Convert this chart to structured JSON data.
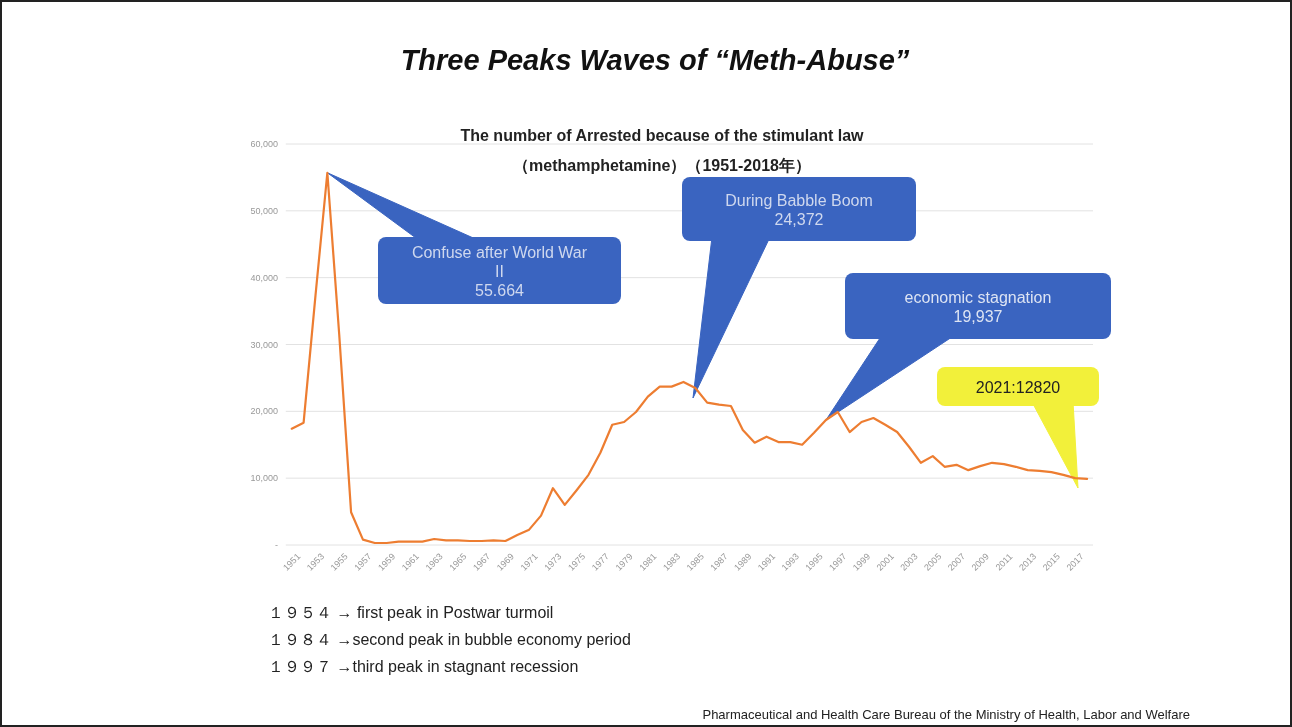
{
  "chart_data": {
    "type": "line",
    "title": "Three Peaks Waves of “Meth-Abuse”",
    "subtitle": "The number of Arrested  because of the stimulant law\n（methamphetamine）（1951-2018年）",
    "x": [
      1951,
      1952,
      1953,
      1954,
      1955,
      1956,
      1957,
      1958,
      1959,
      1960,
      1961,
      1962,
      1963,
      1964,
      1965,
      1966,
      1967,
      1968,
      1969,
      1970,
      1971,
      1972,
      1973,
      1974,
      1975,
      1976,
      1977,
      1978,
      1979,
      1980,
      1981,
      1982,
      1983,
      1984,
      1985,
      1986,
      1987,
      1988,
      1989,
      1990,
      1991,
      1992,
      1993,
      1994,
      1995,
      1996,
      1997,
      1998,
      1999,
      2000,
      2001,
      2002,
      2003,
      2004,
      2005,
      2006,
      2007,
      2008,
      2009,
      2010,
      2011,
      2012,
      2013,
      2014,
      2015,
      2016,
      2017,
      2018
    ],
    "values": [
      17400,
      18300,
      37300,
      55700,
      31500,
      4900,
      800,
      300,
      300,
      500,
      500,
      500,
      900,
      700,
      700,
      600,
      600,
      700,
      600,
      1500,
      2300,
      4400,
      8500,
      6000,
      8200,
      10500,
      13800,
      18000,
      18400,
      19900,
      22200,
      23700,
      23700,
      24400,
      23500,
      21300,
      21000,
      20800,
      17200,
      15300,
      16200,
      15400,
      15400,
      15000,
      16800,
      18700,
      19900,
      16900,
      18400,
      19000,
      18000,
      16900,
      14700,
      12300,
      13300,
      11700,
      12000,
      11200,
      11800,
      12300,
      12100,
      11700,
      11200,
      11100,
      10900,
      10500,
      10000,
      9900
    ],
    "color": "#ed7d31",
    "xlim": [
      1950.5,
      2018.5
    ],
    "xticks": [
      1951,
      1953,
      1955,
      1957,
      1959,
      1961,
      1963,
      1965,
      1967,
      1969,
      1971,
      1973,
      1975,
      1977,
      1979,
      1981,
      1983,
      1985,
      1987,
      1989,
      1991,
      1993,
      1995,
      1997,
      1999,
      2001,
      2003,
      2005,
      2007,
      2009,
      2011,
      2013,
      2015,
      2017
    ],
    "ylim": [
      0,
      60000
    ],
    "yticks": [
      {
        "value": 0,
        "label": "-"
      },
      {
        "value": 10000,
        "label": "10,000"
      },
      {
        "value": 20000,
        "label": "20,000"
      },
      {
        "value": 30000,
        "label": "30,000"
      },
      {
        "value": 40000,
        "label": "40,000"
      },
      {
        "value": 50000,
        "label": "50,000"
      },
      {
        "value": 60000,
        "label": "60,000"
      }
    ],
    "grid": "y",
    "annotations": [
      {
        "text": "Confuse after World War\nII\n55.664",
        "x": 1954,
        "y": 55700
      },
      "During Babble Boom\n24,372",
      "economic stagnation\n19,937",
      "2021:12820",
      "１９５４ → first peak in Postwar turmoil",
      "１９８４ →second peak in bubble economy period",
      "１９９７ →third peak in stagnant recession",
      "Pharmaceutical and Health Care Bureau of the Ministry of Health, Labor and Welfare"
    ]
  }
}
